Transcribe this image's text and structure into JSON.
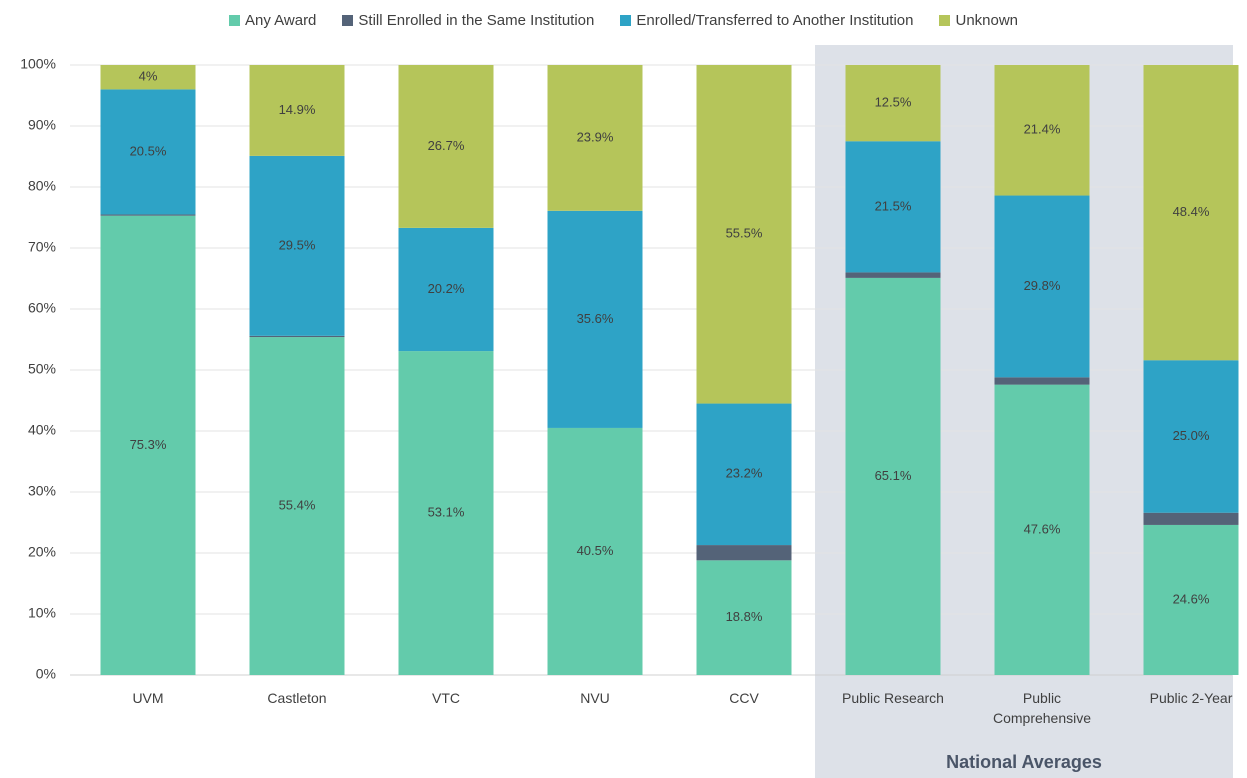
{
  "chart_data": {
    "type": "stacked_bar",
    "categories": [
      "UVM",
      "Castleton",
      "VTC",
      "NVU",
      "CCV",
      "Public Research",
      "Public Comprehensive",
      "Public 2-Year"
    ],
    "series": [
      {
        "name": "Any Award",
        "color": "#63cbab",
        "values": [
          75.3,
          55.4,
          53.1,
          40.5,
          18.8,
          65.1,
          47.6,
          24.6
        ],
        "value_labels": [
          "75.3%",
          "55.4%",
          "53.1%",
          "40.5%",
          "18.8%",
          "65.1%",
          "47.6%",
          "24.6%"
        ]
      },
      {
        "name": "Still Enrolled in the Same Institution",
        "color": "#546378",
        "values": [
          0.2,
          0.2,
          0,
          0,
          2.5,
          0.9,
          1.2,
          2.0
        ]
      },
      {
        "name": "Enrolled/Transferred to Another Institution",
        "color": "#2ea3c6",
        "values": [
          20.5,
          29.5,
          20.2,
          35.6,
          23.2,
          21.5,
          29.8,
          25.0
        ],
        "value_labels": [
          "20.5%",
          "29.5%",
          "20.2%",
          "35.6%",
          "23.2%",
          "21.5%",
          "29.8%",
          "25.0%"
        ]
      },
      {
        "name": "Unknown",
        "color": "#b5c55a",
        "values": [
          4,
          14.9,
          26.7,
          23.9,
          55.5,
          12.5,
          21.4,
          48.4
        ],
        "value_labels": [
          "4%",
          "14.9%",
          "26.7%",
          "23.9%",
          "55.5%",
          "12.5%",
          "21.4%",
          "48.4%"
        ]
      }
    ],
    "ylim": [
      0,
      100
    ],
    "yticks": [
      {
        "value": 0,
        "label": "0%"
      },
      {
        "value": 10,
        "label": "10%"
      },
      {
        "value": 20,
        "label": "20%"
      },
      {
        "value": 30,
        "label": "30%"
      },
      {
        "value": 40,
        "label": "40%"
      },
      {
        "value": 50,
        "label": "50%"
      },
      {
        "value": 60,
        "label": "60%"
      },
      {
        "value": 70,
        "label": "70%"
      },
      {
        "value": 80,
        "label": "80%"
      },
      {
        "value": 90,
        "label": "90%"
      },
      {
        "value": 100,
        "label": "100%"
      }
    ],
    "grid": true,
    "legend": "top",
    "groups": [
      {
        "label": "National Averages",
        "members": [
          "Public Research",
          "Public Comprehensive",
          "Public 2-Year"
        ]
      }
    ]
  }
}
